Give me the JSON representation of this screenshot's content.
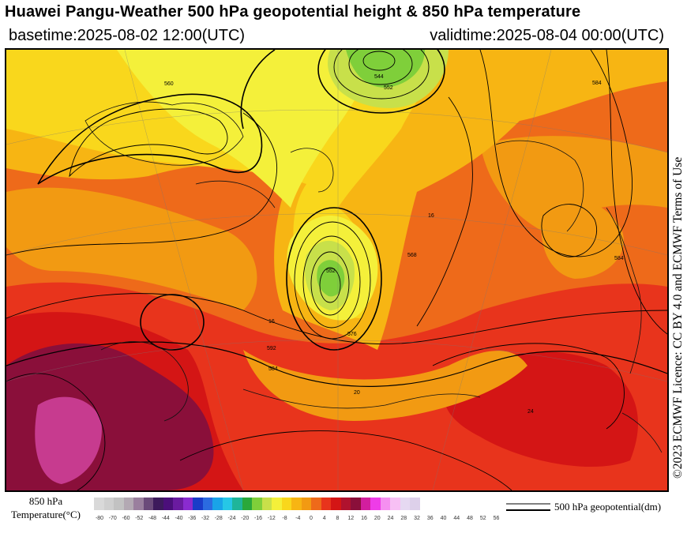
{
  "header": {
    "title": "Huawei Pangu-Weather 500 hPa geopotential height & 850 hPa temperature",
    "basetime": "basetime:2025-08-02 12:00(UTC)",
    "validtime": "validtime:2025-08-04 00:00(UTC)"
  },
  "licence": "©2023 ECMWF Licence: CC BY 4.0 and ECMWF Terms of Use",
  "colorbar": {
    "label_line1": "850 hPa",
    "label_line2": "Temperature(°C)",
    "ticks": [
      "-80",
      "-70",
      "-60",
      "-52",
      "-48",
      "-44",
      "-40",
      "-36",
      "-32",
      "-28",
      "-24",
      "-20",
      "-16",
      "-12",
      "-8",
      "-4",
      "0",
      "4",
      "8",
      "12",
      "16",
      "20",
      "24",
      "28",
      "32",
      "36",
      "40",
      "44",
      "48",
      "52",
      "56"
    ],
    "colors": [
      "#d9d9d9",
      "#cfcfcf",
      "#c2c2c2",
      "#b3a9b3",
      "#9a7f9e",
      "#6b4a7a",
      "#3d1a5c",
      "#4b0f7a",
      "#6a1ba0",
      "#8a2bd0",
      "#1a3cc8",
      "#2b6be0",
      "#19a3e8",
      "#26c7e6",
      "#1fb59a",
      "#2aa83a",
      "#7fcf3a",
      "#c8e04a",
      "#f4f03a",
      "#f9d71c",
      "#f7b513",
      "#f29a12",
      "#ee6a1a",
      "#e8341c",
      "#d41515",
      "#b0122e",
      "#8a0f3a",
      "#d21e9e",
      "#ee3ce8",
      "#f58ff0",
      "#f7c0f4",
      "#e6d9f2",
      "#ddd0ea"
    ]
  },
  "legend": {
    "label": "500 hPa geopotential(dm)"
  },
  "map": {
    "contour_labels": [
      "544",
      "552",
      "560",
      "568",
      "576",
      "584",
      "592",
      "16",
      "20",
      "24"
    ]
  }
}
